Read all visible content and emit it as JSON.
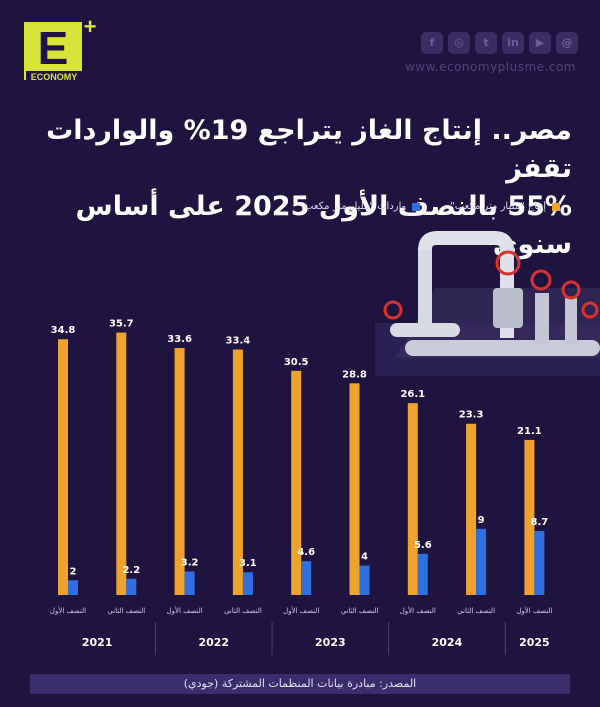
{
  "brand": {
    "logo_letter": "E",
    "logo_plus": "+",
    "logo_word": "ECONOMY",
    "website": "www.economyplusme.com"
  },
  "social_icons": [
    {
      "name": "facebook-icon",
      "glyph": "f"
    },
    {
      "name": "instagram-icon",
      "glyph": "◎"
    },
    {
      "name": "twitter-icon",
      "glyph": "t"
    },
    {
      "name": "linkedin-icon",
      "glyph": "in"
    },
    {
      "name": "youtube-icon",
      "glyph": "▶"
    },
    {
      "name": "threads-icon",
      "glyph": "@"
    }
  ],
  "title_line1": "مصر.. إنتاج الغاز يتراجع 19% والواردات تقفز",
  "title_line2": "55% بالنصف الأول 2025 على أساس سنوي",
  "source": "المصدر: مبادرة بيانات المنظمات المشتركة (جودي)",
  "colors": {
    "production": "#f0a32c",
    "imports": "#2f6fe0",
    "background": "#1f1440"
  },
  "chart_data": {
    "type": "bar",
    "categories": [
      "النصف الأول",
      "النصف الثاني",
      "النصف الأول",
      "النصف الثاني",
      "النصف الأول",
      "النصف الثاني",
      "النصف الأول",
      "النصف الثاني",
      "النصف الأول"
    ],
    "years": [
      "2021",
      "2022",
      "2023",
      "2024",
      "2025"
    ],
    "series": [
      {
        "name": "إنتاج \"مليار متر مكعب\"",
        "values": [
          34.8,
          35.7,
          33.6,
          33.4,
          30.5,
          28.8,
          26.1,
          23.3,
          21.1
        ]
      },
      {
        "name": "واردات \"مليار متر مكعب\"",
        "values": [
          2,
          2.2,
          3.2,
          3.1,
          4.6,
          4,
          5.6,
          9,
          8.7
        ]
      }
    ],
    "ylim": [
      0,
      40
    ],
    "grid": false,
    "legend": "top-right"
  }
}
